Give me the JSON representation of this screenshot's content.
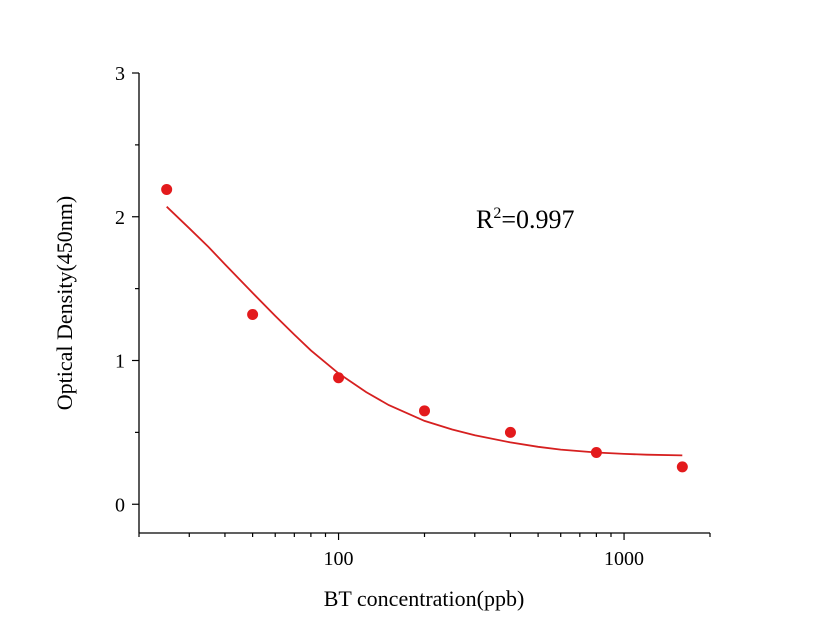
{
  "chart_data": {
    "type": "scatter",
    "xlabel": "BT concentration(ppb)",
    "ylabel": "Optical Density(450nm)",
    "xscale": "log",
    "xlim": [
      20,
      2000
    ],
    "ylim": [
      -0.2,
      3
    ],
    "x_tick_labels": [
      "100",
      "1000"
    ],
    "y_tick_labels": [
      "0",
      "1",
      "2",
      "3"
    ],
    "grid": false,
    "legend": "none",
    "annotation": {
      "text": "R",
      "superscript": "2",
      "suffix": "=0.997"
    },
    "points": {
      "x": [
        25,
        50,
        100,
        200,
        400,
        800,
        1600
      ],
      "y": [
        2.19,
        1.32,
        0.88,
        0.65,
        0.5,
        0.36,
        0.26
      ],
      "color": "#e31a1c"
    },
    "fit": {
      "x": [
        25,
        30,
        35,
        40,
        50,
        60,
        70,
        80,
        100,
        125,
        150,
        200,
        250,
        300,
        400,
        500,
        600,
        800,
        1000,
        1200,
        1600
      ],
      "y": [
        2.07,
        1.92,
        1.79,
        1.67,
        1.47,
        1.31,
        1.18,
        1.07,
        0.91,
        0.78,
        0.69,
        0.58,
        0.52,
        0.48,
        0.43,
        0.4,
        0.38,
        0.36,
        0.35,
        0.345,
        0.34
      ],
      "color": "#d62020"
    }
  }
}
